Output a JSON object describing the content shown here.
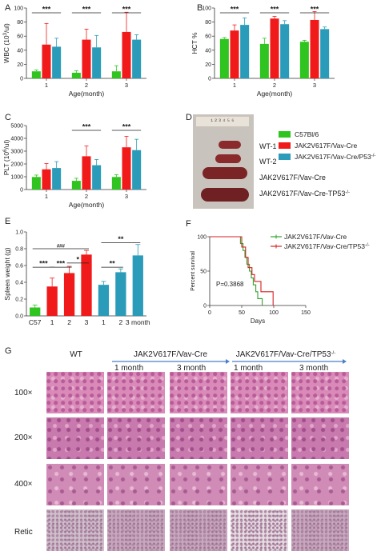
{
  "panel_letters": {
    "a": "A",
    "b": "B",
    "c": "C",
    "d": "D",
    "e": "E",
    "f": "F",
    "g": "G"
  },
  "colors": {
    "green": "#2fc41f",
    "red": "#f01a1a",
    "teal": "#2a9bb8",
    "blue_line": "#4a7fc8",
    "kaplan_green": "#2fa32f",
    "kaplan_red": "#d62020"
  },
  "legend_groups": {
    "items": [
      {
        "label": "C57Bl/6",
        "color": "#2fc41f"
      },
      {
        "label": "JAK2V617F/Vav-Cre",
        "color": "#f01a1a"
      },
      {
        "label": "JAK2V617F/Vav-Cre/P53",
        "sup": "-/-",
        "color": "#2a9bb8"
      }
    ]
  },
  "chart_data": [
    {
      "id": "A",
      "type": "bar",
      "categories": [
        "1",
        "2",
        "3"
      ],
      "ylabel_main": "WBC (10",
      "ylabel_sup": "3",
      "ylabel_end": "/ul)",
      "xlabel": "Age(month)",
      "ylim": [
        0,
        100
      ],
      "yticks": [
        "0",
        "20",
        "40",
        "60",
        "80",
        "100"
      ],
      "series": [
        {
          "values": [
            10,
            8,
            10
          ],
          "err": [
            2,
            3,
            8
          ],
          "color": "#2fc41f"
        },
        {
          "values": [
            48,
            55,
            66
          ],
          "err": [
            30,
            15,
            28
          ],
          "color": "#f01a1a"
        },
        {
          "values": [
            45,
            44,
            55
          ],
          "err": [
            12,
            17,
            7
          ],
          "color": "#2a9bb8"
        }
      ],
      "sig": [
        "***",
        "***",
        "***"
      ]
    },
    {
      "id": "B",
      "type": "bar",
      "categories": [
        "1",
        "2",
        "3"
      ],
      "ylabel_main": "HCT %",
      "ylabel_sup": "",
      "ylabel_end": "",
      "xlabel": "Age(month)",
      "ylim": [
        0,
        100
      ],
      "yticks": [
        "0",
        "20",
        "40",
        "60",
        "80",
        "100"
      ],
      "series": [
        {
          "values": [
            56,
            49,
            52
          ],
          "err": [
            2,
            8,
            2
          ],
          "color": "#2fc41f"
        },
        {
          "values": [
            68,
            85,
            83
          ],
          "err": [
            8,
            3,
            12
          ],
          "color": "#f01a1a"
        },
        {
          "values": [
            76,
            77,
            70
          ],
          "err": [
            10,
            5,
            3
          ],
          "color": "#2a9bb8"
        }
      ],
      "sig": [
        "***",
        "***",
        "***"
      ]
    },
    {
      "id": "C",
      "type": "bar",
      "categories": [
        "1",
        "2",
        "3"
      ],
      "ylabel_main": "PLT (10",
      "ylabel_sup": "6",
      "ylabel_end": "/ul)",
      "xlabel": "Age(month)",
      "ylim": [
        0,
        5000
      ],
      "yticks": [
        "0",
        "1000",
        "2000",
        "3000",
        "4000",
        "5000"
      ],
      "series": [
        {
          "values": [
            980,
            680,
            980
          ],
          "err": [
            150,
            200,
            180
          ],
          "color": "#2fc41f"
        },
        {
          "values": [
            1580,
            2600,
            3300
          ],
          "err": [
            450,
            800,
            850
          ],
          "color": "#f01a1a"
        },
        {
          "values": [
            1680,
            1900,
            3080
          ],
          "err": [
            500,
            450,
            850
          ],
          "color": "#2a9bb8"
        }
      ],
      "sig": [
        "",
        "***",
        "***"
      ]
    },
    {
      "id": "E",
      "type": "bar",
      "categories": [
        "C57",
        "1",
        "2",
        "3",
        "1",
        "2",
        "3 month"
      ],
      "ylabel_main": "Spleen weight (g)",
      "ylim": [
        0,
        1.0
      ],
      "yticks": [
        "0.0",
        "0.2",
        "0.4",
        "0.6",
        "0.8",
        "1.0"
      ],
      "values": [
        0.1,
        0.35,
        0.51,
        0.73,
        0.37,
        0.52,
        0.72
      ],
      "err": [
        0.03,
        0.1,
        0.08,
        0.05,
        0.04,
        0.04,
        0.13
      ],
      "colors": [
        "#2fc41f",
        "#f01a1a",
        "#f01a1a",
        "#f01a1a",
        "#2a9bb8",
        "#2a9bb8",
        "#2a9bb8"
      ],
      "brackets": [
        {
          "from": 0,
          "to": 1,
          "text": "***",
          "level": 0.58
        },
        {
          "from": 1,
          "to": 2,
          "text": "***",
          "level": 0.58
        },
        {
          "from": 2,
          "to": 3,
          "text": "*",
          "level": 0.63
        },
        {
          "from": 0,
          "to": 3,
          "text": "###",
          "level": 0.8
        },
        {
          "from": 4,
          "to": 5,
          "text": "**",
          "level": 0.58
        },
        {
          "from": 4,
          "to": 6,
          "text": "**",
          "level": 0.87
        }
      ]
    },
    {
      "id": "F",
      "type": "line",
      "ylabel": "Percent survival",
      "xlabel": "Days",
      "xlim": [
        0,
        150
      ],
      "ylim": [
        0,
        100
      ],
      "xticks": [
        "0",
        "50",
        "100",
        "150"
      ],
      "yticks": [
        "0",
        "50",
        "100"
      ],
      "annotation": "P=0.3868",
      "series": [
        {
          "name": "JAK2V617F/Vav-Cre",
          "color": "#2fa32f",
          "steps": [
            [
              0,
              100
            ],
            [
              45,
              100
            ],
            [
              48,
              90
            ],
            [
              52,
              80
            ],
            [
              55,
              70
            ],
            [
              58,
              60
            ],
            [
              62,
              50
            ],
            [
              65,
              40
            ],
            [
              68,
              30
            ],
            [
              72,
              20
            ],
            [
              75,
              10
            ],
            [
              82,
              0
            ]
          ]
        },
        {
          "name": "JAK2V617F/Vav-Cre/TP53",
          "sup": "-/-",
          "color": "#d62020",
          "steps": [
            [
              0,
              100
            ],
            [
              48,
              100
            ],
            [
              50,
              85
            ],
            [
              56,
              70
            ],
            [
              60,
              55
            ],
            [
              66,
              45
            ],
            [
              70,
              35
            ],
            [
              80,
              20
            ],
            [
              95,
              20
            ],
            [
              99,
              0
            ]
          ]
        }
      ]
    }
  ],
  "panel_d": {
    "labels": [
      {
        "text": "WT-1"
      },
      {
        "text": "WT-2"
      },
      {
        "text": "JAK2V617F/Vav-Cre"
      },
      {
        "text": "JAK2V617F/Vav-Cre-TP53",
        "sup": "-/-"
      }
    ],
    "ruler_marks": "¹ ² ³ ⁴ ⁵ ⁶"
  },
  "panel_g": {
    "col_wt": "WT",
    "group1": "JAK2V617F/Vav-Cre",
    "group2": "JAK2V617F/Vav-Cre/TP53",
    "group2_sup": "-/-",
    "month1": "1 month",
    "month3": "3 month",
    "rows": [
      "100×",
      "200×",
      "400×",
      "Retic"
    ]
  }
}
